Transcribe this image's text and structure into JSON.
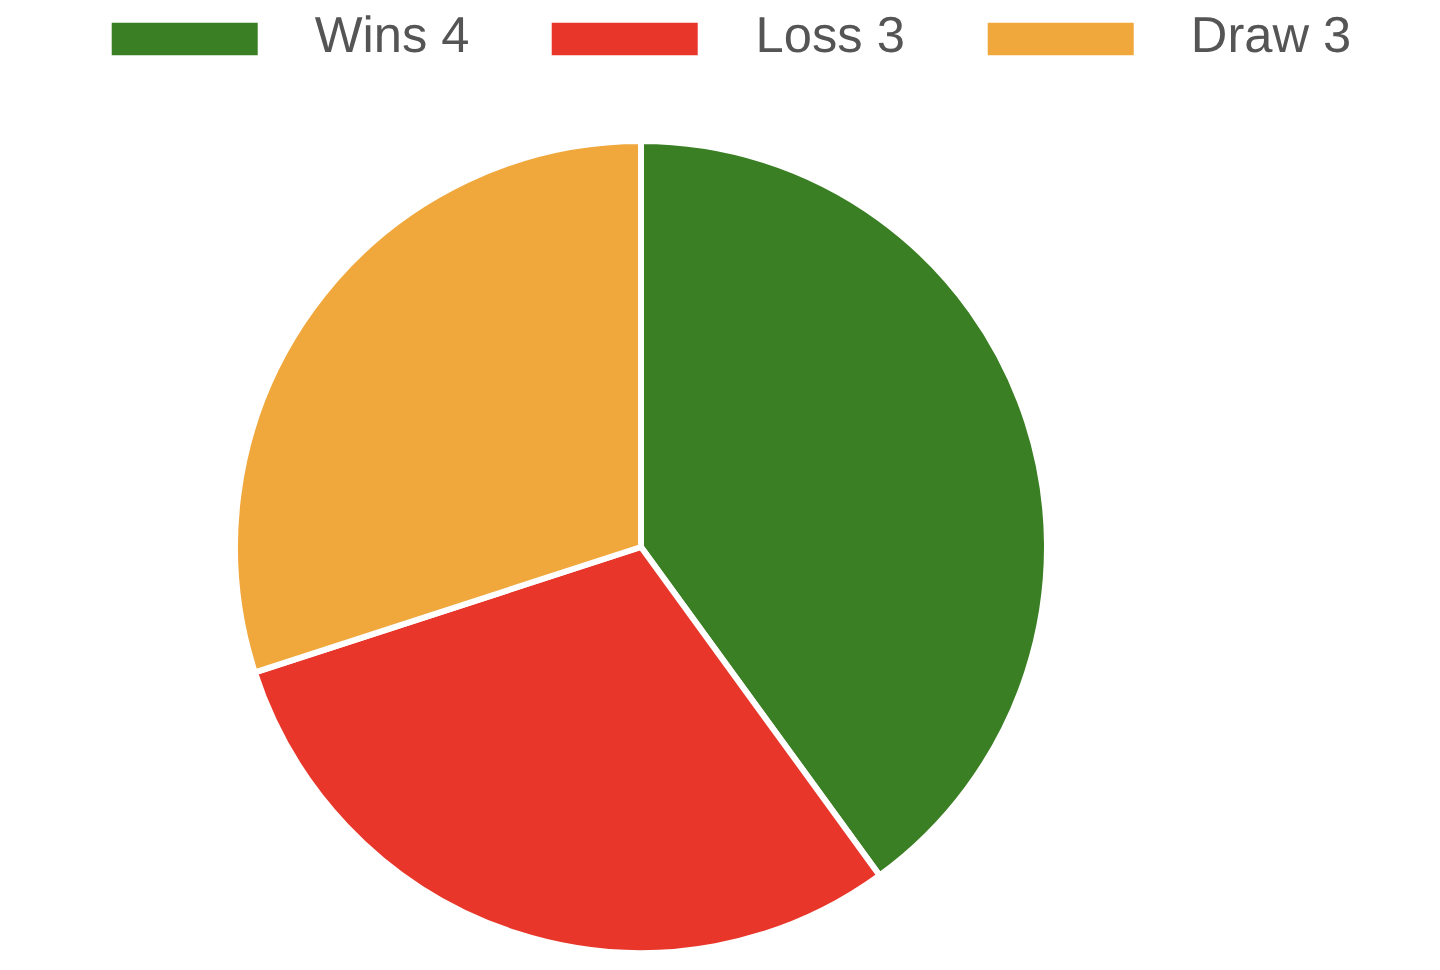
{
  "chart_data": {
    "type": "pie",
    "categories": [
      "Wins 4",
      "Loss 3",
      "Draw 3"
    ],
    "values": [
      4,
      3,
      3
    ],
    "colors": [
      "#3a7f23",
      "#e8372a",
      "#f0a73b"
    ],
    "legend": "top"
  }
}
